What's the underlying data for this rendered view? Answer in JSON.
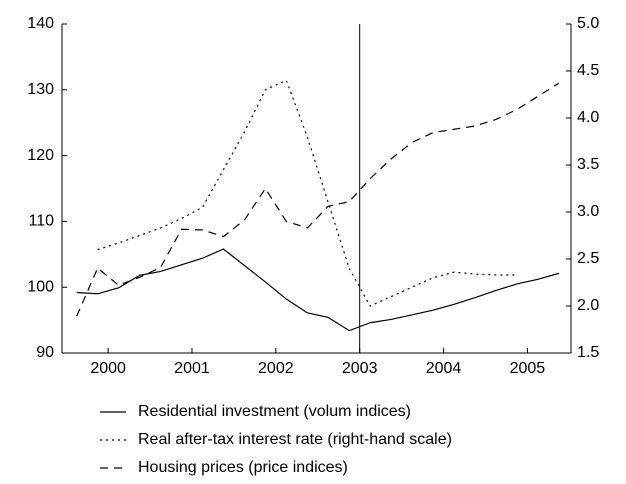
{
  "chart_data": {
    "type": "line",
    "x": [
      1999.625,
      1999.875,
      2000.125,
      2000.375,
      2000.625,
      2000.875,
      2001.125,
      2001.375,
      2001.625,
      2001.875,
      2002.125,
      2002.375,
      2002.625,
      2002.875,
      2003.125,
      2003.375,
      2003.625,
      2003.875,
      2004.125,
      2004.375,
      2004.625,
      2004.875,
      2005.125,
      2005.375
    ],
    "series": [
      {
        "name": "Residential investment (volum indices)",
        "color": "#000000",
        "dash": "solid",
        "values": [
          99.2,
          99.0,
          99.9,
          101.8,
          102.4,
          103.4,
          104.4,
          105.8,
          103.3,
          100.8,
          98.2,
          96.1,
          95.4,
          93.4,
          94.6,
          95.1,
          95.8,
          96.5,
          97.4,
          98.4,
          99.5,
          100.5,
          101.2,
          102.1
        ]
      },
      {
        "name": "Real after-tax interest rate (right-hand scale)",
        "color": "#000000",
        "dash": "dotted",
        "axis": "y2",
        "values": [
          null,
          2.6,
          2.67,
          2.75,
          2.83,
          2.93,
          3.05,
          3.45,
          3.85,
          4.3,
          4.4,
          3.8,
          3.1,
          2.4,
          2.0,
          2.1,
          2.2,
          2.3,
          2.36,
          2.34,
          2.33,
          2.33,
          null,
          null
        ]
      },
      {
        "name": "Housing prices (price indices)",
        "color": "#000000",
        "dash": "dashed",
        "values": [
          95.6,
          102.9,
          100.3,
          101.5,
          103.0,
          108.8,
          108.7,
          107.7,
          110.2,
          115.0,
          110.0,
          109.0,
          112.3,
          113.0,
          116.5,
          119.5,
          122.0,
          123.5,
          124.0,
          124.5,
          125.5,
          127.0,
          129.0,
          131.0
        ]
      }
    ],
    "xlim": [
      1999.45,
      2005.52
    ],
    "xticks": [
      2000,
      2001,
      2002,
      2003,
      2004,
      2005
    ],
    "ylim": [
      90,
      140
    ],
    "yticks": [
      90,
      100,
      110,
      120,
      130,
      140
    ],
    "y2lim": [
      1.5,
      5.0
    ],
    "y2ticks": [
      1.5,
      {
        "value": 2,
        "label": "2.0"
      },
      2.5,
      {
        "value": 3,
        "label": "3.0"
      },
      3.5,
      {
        "value": 4,
        "label": "4.0"
      },
      4.5,
      {
        "value": 5,
        "label": "5.0"
      }
    ],
    "vertical_line": 2003
  }
}
